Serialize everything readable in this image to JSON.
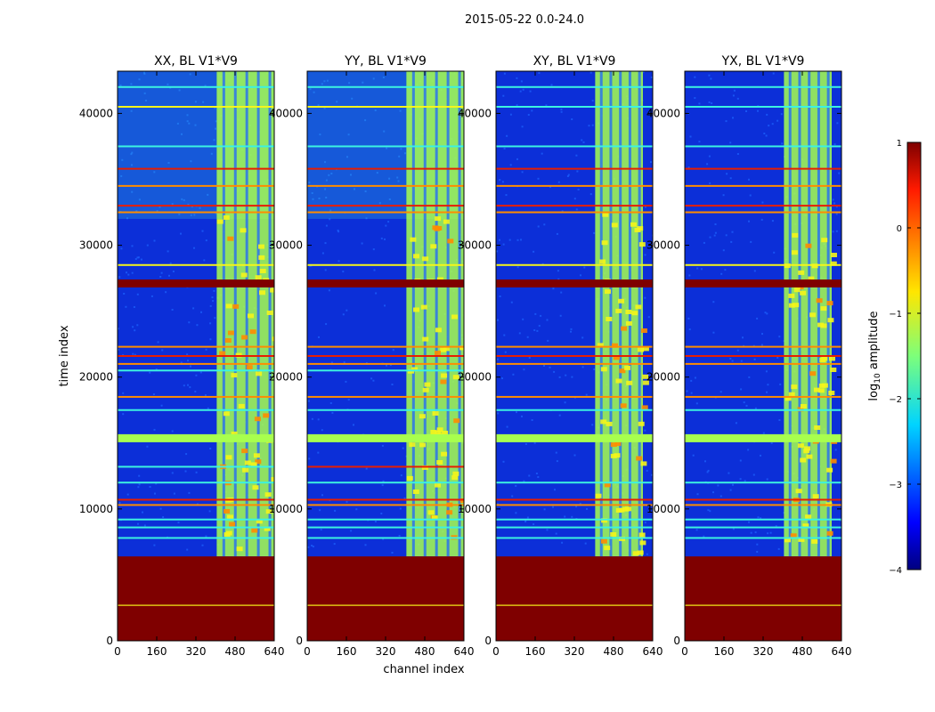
{
  "figure": {
    "suptitle": "2015-05-22 0.0-24.0",
    "xlabel": "channel index",
    "ylabel": "time index"
  },
  "colors": {
    "dark_red": "#7f0000",
    "background": "#0c2fd8",
    "noise": "#1e64ff",
    "band_cyan": "#3cf2e0",
    "band_green": "#a8ff4e",
    "band_yellow": "#f5f51a",
    "band_orange": "#ff8c00",
    "band_red": "#e81e00"
  },
  "chart_data": [
    {
      "type": "heatmap",
      "title": "XX, BL V1*V9",
      "xlabel": "channel index",
      "ylabel": "time index",
      "xlim": [
        0,
        640
      ],
      "ylim": [
        0,
        43200
      ],
      "xticks": [
        0,
        160,
        320,
        480,
        640
      ],
      "yticks": [
        0,
        10000,
        20000,
        30000,
        40000
      ],
      "rfi_channel_range": [
        405,
        640
      ],
      "flagged_time_ranges": [
        [
          0,
          6400
        ],
        [
          26800,
          27400
        ]
      ],
      "horizontal_rfi_lines": [
        {
          "t": 2700,
          "level": "yellow"
        },
        {
          "t": 7800,
          "level": "cyan"
        },
        {
          "t": 8600,
          "level": "cyan"
        },
        {
          "t": 9200,
          "level": "cyan"
        },
        {
          "t": 10300,
          "level": "orange"
        },
        {
          "t": 10700,
          "level": "red"
        },
        {
          "t": 12000,
          "level": "cyan"
        },
        {
          "t": 13200,
          "level": "cyan"
        },
        {
          "t": 15600,
          "level": "green"
        },
        {
          "t": 17500,
          "level": "cyan"
        },
        {
          "t": 18500,
          "level": "orange"
        },
        {
          "t": 20500,
          "level": "cyan"
        },
        {
          "t": 21000,
          "level": "orange"
        },
        {
          "t": 21600,
          "level": "red"
        },
        {
          "t": 22300,
          "level": "orange"
        },
        {
          "t": 28500,
          "level": "yellow"
        },
        {
          "t": 32500,
          "level": "orange"
        },
        {
          "t": 33000,
          "level": "red"
        },
        {
          "t": 34500,
          "level": "orange"
        },
        {
          "t": 35800,
          "level": "red"
        },
        {
          "t": 37500,
          "level": "cyan"
        },
        {
          "t": 40500,
          "level": "yellow"
        },
        {
          "t": 42000,
          "level": "cyan"
        }
      ]
    },
    {
      "type": "heatmap",
      "title": "YY, BL V1*V9",
      "xlim": [
        0,
        640
      ],
      "ylim": [
        0,
        43200
      ],
      "xticks": [
        0,
        160,
        320,
        480,
        640
      ],
      "yticks": [
        0,
        10000,
        20000,
        30000,
        40000
      ],
      "rfi_channel_range": [
        405,
        640
      ],
      "flagged_time_ranges": [
        [
          0,
          6400
        ],
        [
          26800,
          27400
        ]
      ],
      "horizontal_rfi_lines": [
        {
          "t": 2700,
          "level": "yellow"
        },
        {
          "t": 7800,
          "level": "cyan"
        },
        {
          "t": 8600,
          "level": "cyan"
        },
        {
          "t": 9200,
          "level": "cyan"
        },
        {
          "t": 10300,
          "level": "orange"
        },
        {
          "t": 10700,
          "level": "red"
        },
        {
          "t": 12000,
          "level": "cyan"
        },
        {
          "t": 13200,
          "level": "red"
        },
        {
          "t": 15600,
          "level": "green"
        },
        {
          "t": 17500,
          "level": "cyan"
        },
        {
          "t": 18500,
          "level": "orange"
        },
        {
          "t": 20500,
          "level": "cyan"
        },
        {
          "t": 21000,
          "level": "orange"
        },
        {
          "t": 21600,
          "level": "red"
        },
        {
          "t": 22300,
          "level": "orange"
        },
        {
          "t": 28500,
          "level": "yellow"
        },
        {
          "t": 32500,
          "level": "orange"
        },
        {
          "t": 33000,
          "level": "red"
        },
        {
          "t": 34500,
          "level": "orange"
        },
        {
          "t": 35800,
          "level": "red"
        },
        {
          "t": 37500,
          "level": "cyan"
        },
        {
          "t": 40500,
          "level": "yellow"
        },
        {
          "t": 42000,
          "level": "cyan"
        }
      ]
    },
    {
      "type": "heatmap",
      "title": "XY, BL V1*V9",
      "xlim": [
        0,
        640
      ],
      "ylim": [
        0,
        43200
      ],
      "xticks": [
        0,
        160,
        320,
        480,
        640
      ],
      "yticks": [
        0,
        10000,
        20000,
        30000,
        40000
      ],
      "rfi_channel_range": [
        405,
        600
      ],
      "flagged_time_ranges": [
        [
          0,
          6400
        ],
        [
          26800,
          27400
        ]
      ],
      "horizontal_rfi_lines": [
        {
          "t": 2700,
          "level": "yellow"
        },
        {
          "t": 7800,
          "level": "cyan"
        },
        {
          "t": 8600,
          "level": "cyan"
        },
        {
          "t": 9200,
          "level": "cyan"
        },
        {
          "t": 10300,
          "level": "orange"
        },
        {
          "t": 10700,
          "level": "red"
        },
        {
          "t": 12000,
          "level": "cyan"
        },
        {
          "t": 15600,
          "level": "green"
        },
        {
          "t": 17500,
          "level": "cyan"
        },
        {
          "t": 18500,
          "level": "orange"
        },
        {
          "t": 21000,
          "level": "orange"
        },
        {
          "t": 21600,
          "level": "red"
        },
        {
          "t": 22300,
          "level": "orange"
        },
        {
          "t": 28500,
          "level": "yellow"
        },
        {
          "t": 32500,
          "level": "orange"
        },
        {
          "t": 33000,
          "level": "red"
        },
        {
          "t": 34500,
          "level": "orange"
        },
        {
          "t": 35800,
          "level": "red"
        },
        {
          "t": 37500,
          "level": "cyan"
        },
        {
          "t": 40500,
          "level": "cyan"
        },
        {
          "t": 42000,
          "level": "cyan"
        }
      ]
    },
    {
      "type": "heatmap",
      "title": "YX, BL V1*V9",
      "xlim": [
        0,
        640
      ],
      "ylim": [
        0,
        43200
      ],
      "xticks": [
        0,
        160,
        320,
        480,
        640
      ],
      "yticks": [
        0,
        10000,
        20000,
        30000,
        40000
      ],
      "rfi_channel_range": [
        405,
        600
      ],
      "flagged_time_ranges": [
        [
          0,
          6400
        ],
        [
          26800,
          27400
        ]
      ],
      "horizontal_rfi_lines": [
        {
          "t": 2700,
          "level": "yellow"
        },
        {
          "t": 7800,
          "level": "cyan"
        },
        {
          "t": 8600,
          "level": "cyan"
        },
        {
          "t": 9200,
          "level": "cyan"
        },
        {
          "t": 10300,
          "level": "orange"
        },
        {
          "t": 10700,
          "level": "red"
        },
        {
          "t": 12000,
          "level": "cyan"
        },
        {
          "t": 15600,
          "level": "green"
        },
        {
          "t": 17500,
          "level": "cyan"
        },
        {
          "t": 18500,
          "level": "orange"
        },
        {
          "t": 21000,
          "level": "orange"
        },
        {
          "t": 21600,
          "level": "red"
        },
        {
          "t": 22300,
          "level": "orange"
        },
        {
          "t": 28500,
          "level": "yellow"
        },
        {
          "t": 32500,
          "level": "orange"
        },
        {
          "t": 33000,
          "level": "red"
        },
        {
          "t": 34500,
          "level": "orange"
        },
        {
          "t": 35800,
          "level": "red"
        },
        {
          "t": 37500,
          "level": "cyan"
        },
        {
          "t": 40500,
          "level": "cyan"
        },
        {
          "t": 42000,
          "level": "cyan"
        }
      ]
    }
  ],
  "colorbar": {
    "label_main": "log",
    "label_sub": "10",
    "label_tail": " amplitude",
    "range": [
      -4,
      1
    ],
    "ticks": [
      1,
      0,
      -1,
      -2,
      -3,
      -4
    ],
    "tick_labels": [
      "1",
      "0",
      "−1",
      "−2",
      "−3",
      "−4"
    ]
  }
}
